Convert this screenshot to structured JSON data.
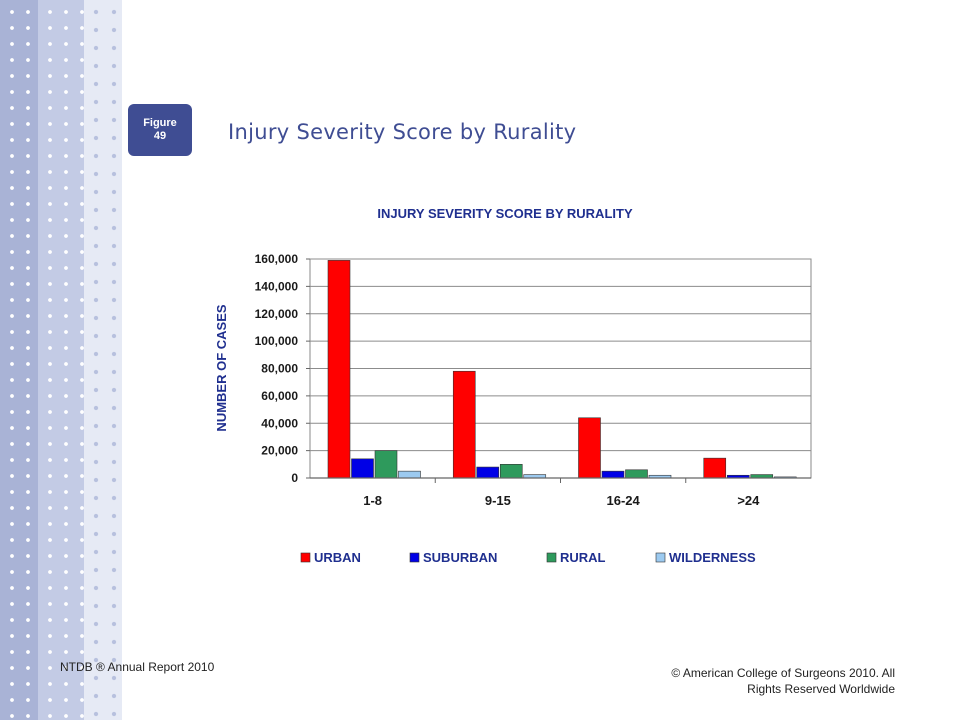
{
  "figure_badge": {
    "line1": "Figure",
    "line2": "49"
  },
  "page_title": "Injury Severity Score by Rurality",
  "footer": {
    "left": "NTDB ® Annual Report 2010",
    "right": "© American College of Surgeons 2010.  All Rights Reserved Worldwide"
  },
  "colors": {
    "accent": "#3f4d93",
    "chart_title": "#1f2f8f",
    "urban": "#ff0000",
    "suburban": "#0000e6",
    "rural": "#2e9a5c",
    "wilderness": "#9ccaf0"
  },
  "chart_data": {
    "type": "bar",
    "title": "INJURY SEVERITY SCORE BY RURALITY",
    "xlabel": "",
    "ylabel": "NUMBER OF CASES",
    "categories": [
      "1-8",
      "9-15",
      "16-24",
      ">24"
    ],
    "ylim": [
      0,
      160000
    ],
    "yticks": [
      0,
      20000,
      40000,
      60000,
      80000,
      100000,
      120000,
      140000,
      160000
    ],
    "ytick_labels": [
      "0",
      "20,000",
      "40,000",
      "60,000",
      "80,000",
      "100,000",
      "120,000",
      "140,000",
      "160,000"
    ],
    "grid": true,
    "legend": "bottom",
    "series": [
      {
        "name": "URBAN",
        "color": "#ff0000",
        "values": [
          159000,
          78000,
          44000,
          14500
        ]
      },
      {
        "name": "SUBURBAN",
        "color": "#0000e6",
        "values": [
          14000,
          8000,
          5000,
          2000
        ]
      },
      {
        "name": "RURAL",
        "color": "#2e9a5c",
        "values": [
          20000,
          10000,
          6000,
          2500
        ]
      },
      {
        "name": "WILDERNESS",
        "color": "#9ccaf0",
        "values": [
          5000,
          2500,
          2000,
          800
        ]
      }
    ]
  }
}
